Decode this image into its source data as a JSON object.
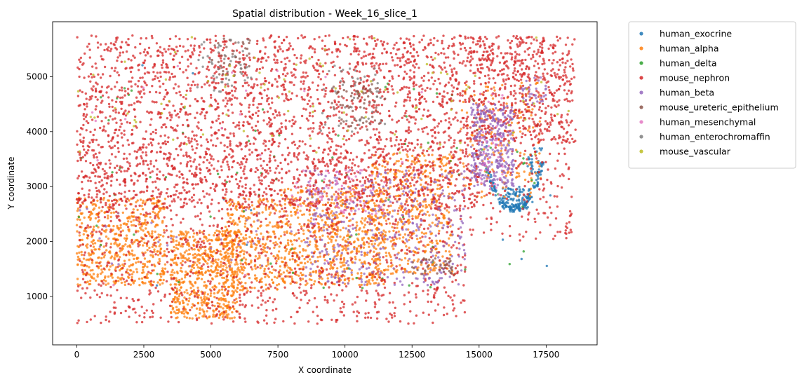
{
  "chart_data": {
    "type": "scatter",
    "title": "Spatial distribution - Week_16_slice_1",
    "xlabel": "X coordinate",
    "ylabel": "Y coordinate",
    "xlim": [
      -900,
      19400
    ],
    "ylim": [
      120,
      6000
    ],
    "xticks": [
      0,
      2500,
      5000,
      7500,
      10000,
      12500,
      15000,
      17500
    ],
    "yticks": [
      1000,
      2000,
      3000,
      4000,
      5000
    ],
    "grid": false,
    "legend_position": "outside-right",
    "series": [
      {
        "name": "human_exocrine",
        "color": "#1f77b4",
        "regions": [
          {
            "type": "ring",
            "cx": 16300,
            "cy": 3900,
            "rx": 1100,
            "ry": 1300,
            "thick": 150,
            "a0": 200,
            "a1": 340,
            "n": 130
          },
          {
            "type": "box",
            "x0": 15800,
            "x1": 17000,
            "y0": 2600,
            "y1": 3000,
            "n": 90
          },
          {
            "type": "box",
            "x0": 16800,
            "x1": 17400,
            "y0": 3200,
            "y1": 3700,
            "n": 30
          },
          {
            "type": "box",
            "x0": 0,
            "x1": 18000,
            "y0": 1000,
            "y1": 5700,
            "n": 15
          }
        ]
      },
      {
        "name": "human_alpha",
        "color": "#ff7f0e",
        "regions": [
          {
            "type": "box",
            "x0": 0,
            "x1": 3300,
            "y0": 1200,
            "y1": 2800,
            "n": 550
          },
          {
            "type": "box",
            "x0": 3500,
            "x1": 6000,
            "y0": 600,
            "y1": 2200,
            "n": 600
          },
          {
            "type": "box",
            "x0": 5500,
            "x1": 7600,
            "y0": 1100,
            "y1": 2800,
            "n": 330
          },
          {
            "type": "box",
            "x0": 7600,
            "x1": 11500,
            "y0": 1200,
            "y1": 3000,
            "n": 660
          },
          {
            "type": "box",
            "x0": 11000,
            "x1": 14000,
            "y0": 1400,
            "y1": 3600,
            "n": 480
          },
          {
            "type": "box",
            "x0": 14300,
            "x1": 17300,
            "y0": 2800,
            "y1": 4900,
            "n": 180
          }
        ]
      },
      {
        "name": "human_delta",
        "color": "#2ca02c",
        "regions": [
          {
            "type": "box",
            "x0": 0,
            "x1": 17500,
            "y0": 1100,
            "y1": 4900,
            "n": 90
          }
        ]
      },
      {
        "name": "mouse_nephron",
        "color": "#d62728",
        "regions": [
          {
            "type": "box",
            "x0": 0,
            "x1": 18600,
            "y0": 3800,
            "y1": 5750,
            "n": 2100
          },
          {
            "type": "box",
            "x0": 0,
            "x1": 15000,
            "y0": 2600,
            "y1": 3800,
            "n": 1300
          },
          {
            "type": "box",
            "x0": 0,
            "x1": 14500,
            "y0": 500,
            "y1": 2600,
            "n": 900
          },
          {
            "type": "box",
            "x0": 14500,
            "x1": 18500,
            "y0": 2000,
            "y1": 5700,
            "n": 320
          }
        ]
      },
      {
        "name": "human_beta",
        "color": "#9467bd",
        "regions": [
          {
            "type": "box",
            "x0": 14700,
            "x1": 16300,
            "y0": 3000,
            "y1": 4500,
            "n": 330
          },
          {
            "type": "box",
            "x0": 8500,
            "x1": 14500,
            "y0": 1200,
            "y1": 3300,
            "n": 380
          },
          {
            "type": "box",
            "x0": 16500,
            "x1": 17500,
            "y0": 4500,
            "y1": 5000,
            "n": 30
          },
          {
            "type": "box",
            "x0": 0,
            "x1": 8000,
            "y0": 1500,
            "y1": 2600,
            "n": 30
          }
        ]
      },
      {
        "name": "mouse_ureteric_epithelium",
        "color": "#8c564b",
        "regions": [
          {
            "type": "box",
            "x0": 5000,
            "x1": 6500,
            "y0": 5000,
            "y1": 5700,
            "n": 40
          },
          {
            "type": "box",
            "x0": 9500,
            "x1": 11500,
            "y0": 4000,
            "y1": 4900,
            "n": 70
          },
          {
            "type": "box",
            "x0": 12500,
            "x1": 14000,
            "y0": 1400,
            "y1": 1700,
            "n": 40
          }
        ]
      },
      {
        "name": "human_mesenchymal",
        "color": "#e377c2",
        "regions": [
          {
            "type": "box",
            "x0": 8000,
            "x1": 11500,
            "y0": 2500,
            "y1": 3300,
            "n": 80
          },
          {
            "type": "box",
            "x0": 15000,
            "x1": 16000,
            "y0": 2800,
            "y1": 4700,
            "n": 40
          },
          {
            "type": "box",
            "x0": 0,
            "x1": 14500,
            "y0": 1000,
            "y1": 5500,
            "n": 25
          }
        ]
      },
      {
        "name": "human_enterochromaffin",
        "color": "#7f7f7f",
        "regions": [
          {
            "type": "box",
            "x0": 4500,
            "x1": 6500,
            "y0": 4700,
            "y1": 5700,
            "n": 45
          },
          {
            "type": "box",
            "x0": 9000,
            "x1": 11500,
            "y0": 4000,
            "y1": 5200,
            "n": 45
          }
        ]
      },
      {
        "name": "mouse_vascular",
        "color": "#bcbd22",
        "regions": [
          {
            "type": "box",
            "x0": 0,
            "x1": 18500,
            "y0": 3500,
            "y1": 5750,
            "n": 90
          }
        ]
      }
    ]
  }
}
